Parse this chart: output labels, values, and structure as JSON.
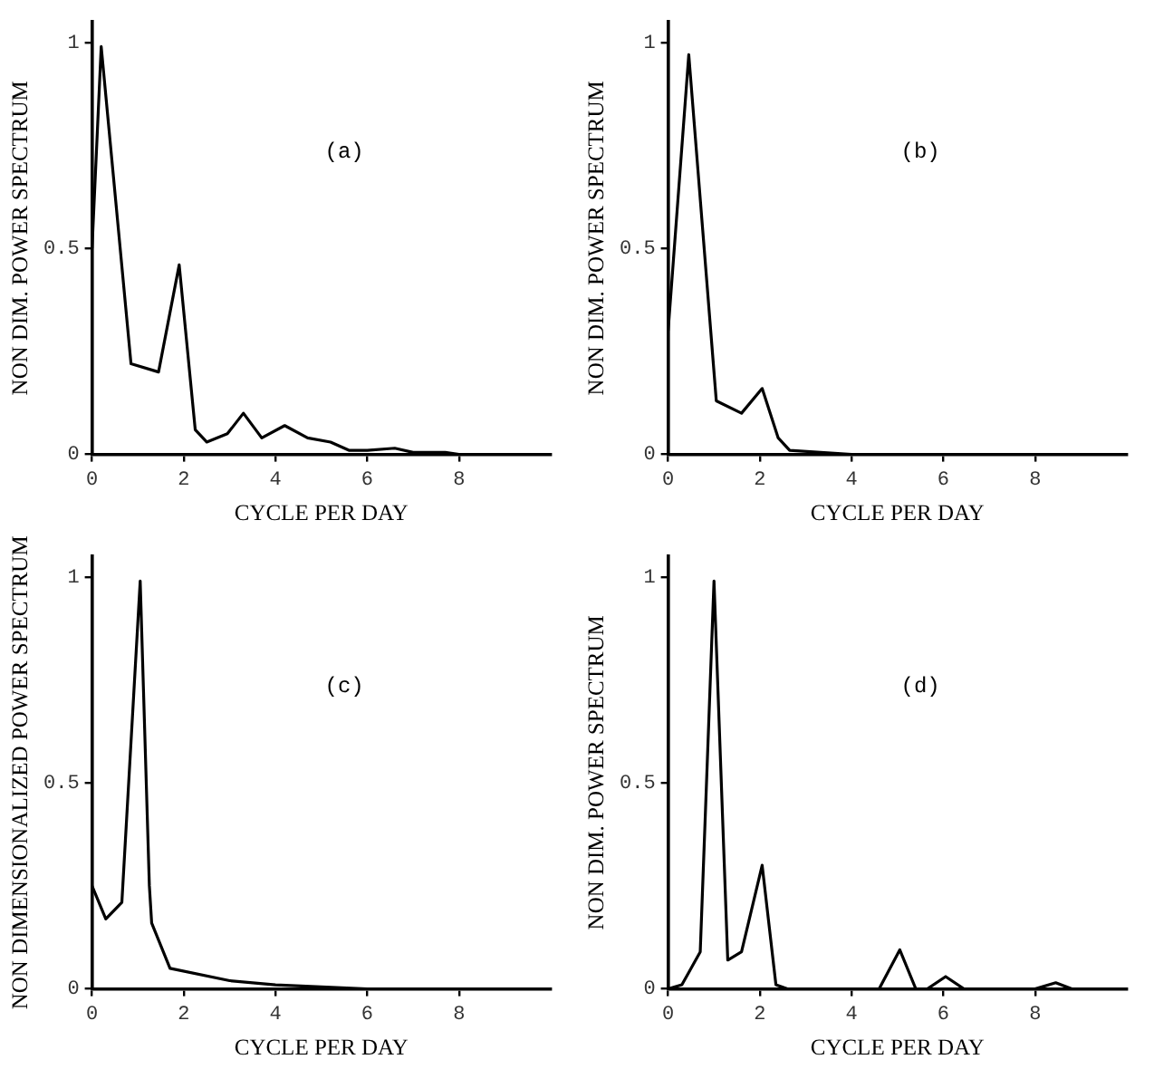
{
  "chart_data": [
    {
      "type": "line",
      "annotations": [
        "(a)"
      ],
      "xlabel": "CYCLE PER DAY",
      "ylabel": "NON DIM. POWER SPECTRUM",
      "color": "#000000",
      "marker": "none",
      "line_style": "solid",
      "xlim": [
        0,
        10
      ],
      "ylim": [
        0,
        1.05
      ],
      "xticks": [
        0,
        2,
        4,
        6,
        8
      ],
      "yticks": [
        0,
        0.5,
        1
      ],
      "x": [
        0,
        0.2,
        0.85,
        1.45,
        1.9,
        2.25,
        2.5,
        2.95,
        3.3,
        3.7,
        4.2,
        4.7,
        5.2,
        5.6,
        6.0,
        6.6,
        7.0,
        7.7,
        8,
        10
      ],
      "values": [
        0.5,
        0.99,
        0.22,
        0.2,
        0.46,
        0.06,
        0.03,
        0.05,
        0.1,
        0.04,
        0.07,
        0.04,
        0.03,
        0.01,
        0.01,
        0.015,
        0.005,
        0.005,
        0,
        0
      ]
    },
    {
      "type": "line",
      "annotations": [
        "(b)"
      ],
      "xlabel": "CYCLE PER DAY",
      "ylabel": "NON DIM. POWER SPECTRUM",
      "color": "#000000",
      "marker": "none",
      "line_style": "solid",
      "xlim": [
        0,
        10
      ],
      "ylim": [
        0,
        1.05
      ],
      "xticks": [
        0,
        2,
        4,
        6,
        8
      ],
      "yticks": [
        0,
        0.5,
        1
      ],
      "x": [
        0,
        0.45,
        1.05,
        1.6,
        2.05,
        2.4,
        2.65,
        4,
        10
      ],
      "values": [
        0.3,
        0.97,
        0.13,
        0.1,
        0.16,
        0.04,
        0.01,
        0,
        0
      ]
    },
    {
      "type": "line",
      "annotations": [
        "(c)"
      ],
      "xlabel": "CYCLE PER DAY",
      "ylabel": "NON DIMENSIONALIZED POWER SPECTRUM",
      "color": "#000000",
      "marker": "none",
      "line_style": "solid",
      "xlim": [
        0,
        10
      ],
      "ylim": [
        0,
        1.05
      ],
      "xticks": [
        0,
        2,
        4,
        6,
        8
      ],
      "yticks": [
        0,
        0.5,
        1
      ],
      "x": [
        0,
        0.3,
        0.65,
        1.05,
        1.25,
        1.3,
        1.7,
        3,
        4,
        6,
        10
      ],
      "values": [
        0.25,
        0.17,
        0.21,
        0.99,
        0.25,
        0.16,
        0.05,
        0.02,
        0.01,
        0,
        0
      ]
    },
    {
      "type": "line",
      "annotations": [
        "(d)"
      ],
      "xlabel": "CYCLE PER DAY",
      "ylabel": "NON DIM. POWER SPECTRUM",
      "color": "#000000",
      "marker": "none",
      "line_style": "solid",
      "xlim": [
        0,
        10
      ],
      "ylim": [
        0,
        1.05
      ],
      "xticks": [
        0,
        2,
        4,
        6,
        8
      ],
      "yticks": [
        0,
        0.5,
        1
      ],
      "x": [
        0,
        0.3,
        0.7,
        1.0,
        1.3,
        1.6,
        2.05,
        2.35,
        2.6,
        4.6,
        5.05,
        5.4,
        5.65,
        6.05,
        6.45,
        8.0,
        8.45,
        8.8,
        10
      ],
      "values": [
        0,
        0.01,
        0.09,
        0.99,
        0.07,
        0.09,
        0.3,
        0.01,
        0,
        0,
        0.095,
        0,
        0,
        0.03,
        0,
        0,
        0.015,
        0,
        0
      ]
    }
  ]
}
